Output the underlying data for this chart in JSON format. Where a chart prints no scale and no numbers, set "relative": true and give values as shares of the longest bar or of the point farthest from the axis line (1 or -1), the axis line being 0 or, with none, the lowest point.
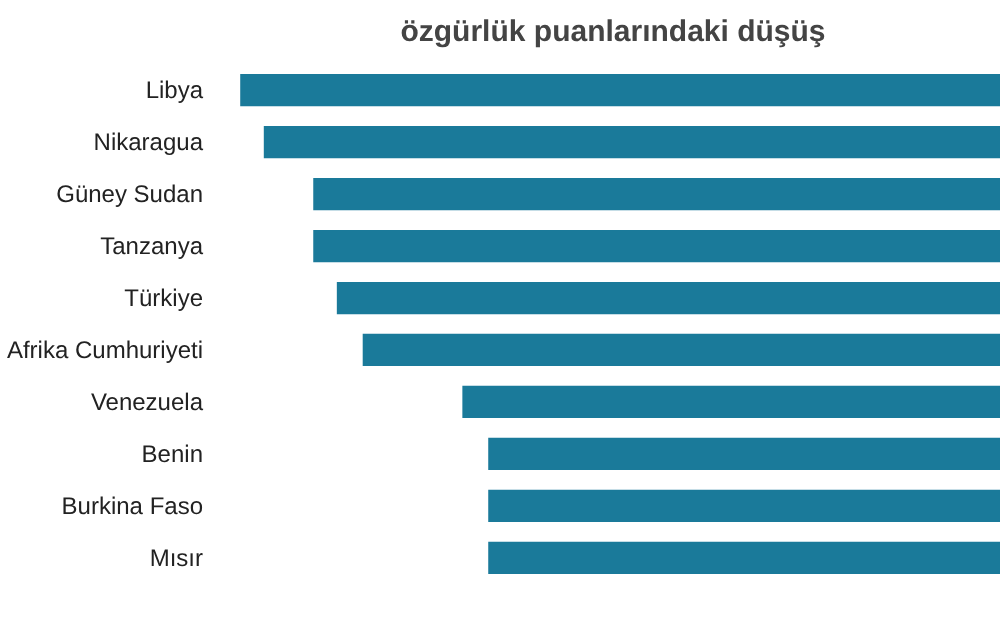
{
  "chart_data": {
    "type": "bar",
    "orientation": "horizontal",
    "relative": true,
    "title": "özgürlük puanlarındaki düşüş",
    "categories": [
      "Libya",
      "Nikaragua",
      "Güney Sudan",
      "Tanzanya",
      "Türkiye",
      "Afrika Cumhuriyeti",
      "Venezuela",
      "Benin",
      "Burkina Faso",
      "Mısır"
    ],
    "values": [
      -1,
      -0.969,
      -0.904,
      -0.904,
      -0.873,
      -0.839,
      -0.708,
      -0.674,
      -0.674,
      -0.674
    ],
    "color": "#1a7a9a",
    "grid": false
  }
}
